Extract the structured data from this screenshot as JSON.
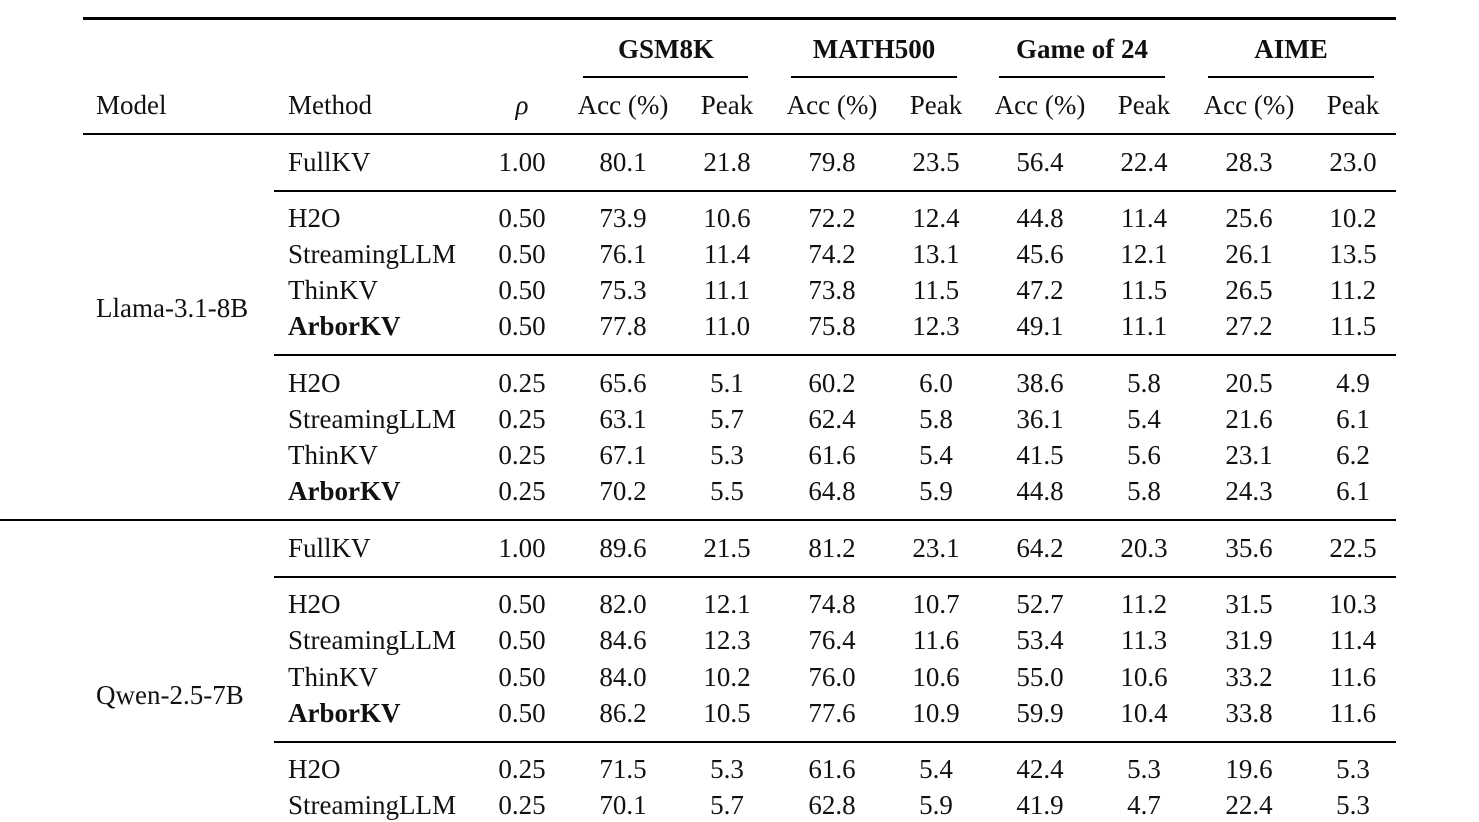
{
  "header": {
    "groups": [
      "GSM8K",
      "MATH500",
      "Game of 24",
      "AIME"
    ],
    "model_label": "Model",
    "method_label": "Method",
    "rho_label": "ρ",
    "acc_label": "Acc (%)",
    "peak_label": "Peak"
  },
  "rows": [
    {
      "model": "",
      "method": "FullKV",
      "bold": false,
      "rho": "1.00",
      "vals": [
        "80.1",
        "21.8",
        "79.8",
        "23.5",
        "56.4",
        "22.4",
        "28.3",
        "23.0"
      ]
    },
    {
      "model": "",
      "method": "H2O",
      "bold": false,
      "rho": "0.50",
      "vals": [
        "73.9",
        "10.6",
        "72.2",
        "12.4",
        "44.8",
        "11.4",
        "25.6",
        "10.2"
      ]
    },
    {
      "model": "",
      "method": "StreamingLLM",
      "bold": false,
      "rho": "0.50",
      "vals": [
        "76.1",
        "11.4",
        "74.2",
        "13.1",
        "45.6",
        "12.1",
        "26.1",
        "13.5"
      ]
    },
    {
      "model": "Llama-3.1-8B",
      "method": "ThinKV",
      "bold": false,
      "rho": "0.50",
      "vals": [
        "75.3",
        "11.1",
        "73.8",
        "11.5",
        "47.2",
        "11.5",
        "26.5",
        "11.2"
      ]
    },
    {
      "model": "",
      "method": "ArborKV",
      "bold": true,
      "rho": "0.50",
      "vals": [
        "77.8",
        "11.0",
        "75.8",
        "12.3",
        "49.1",
        "11.1",
        "27.2",
        "11.5"
      ]
    },
    {
      "model": "",
      "method": "H2O",
      "bold": false,
      "rho": "0.25",
      "vals": [
        "65.6",
        "5.1",
        "60.2",
        "6.0",
        "38.6",
        "5.8",
        "20.5",
        "4.9"
      ]
    },
    {
      "model": "",
      "method": "StreamingLLM",
      "bold": false,
      "rho": "0.25",
      "vals": [
        "63.1",
        "5.7",
        "62.4",
        "5.8",
        "36.1",
        "5.4",
        "21.6",
        "6.1"
      ]
    },
    {
      "model": "",
      "method": "ThinKV",
      "bold": false,
      "rho": "0.25",
      "vals": [
        "67.1",
        "5.3",
        "61.6",
        "5.4",
        "41.5",
        "5.6",
        "23.1",
        "6.2"
      ]
    },
    {
      "model": "",
      "method": "ArborKV",
      "bold": true,
      "rho": "0.25",
      "vals": [
        "70.2",
        "5.5",
        "64.8",
        "5.9",
        "44.8",
        "5.8",
        "24.3",
        "6.1"
      ]
    },
    {
      "model": "",
      "method": "FullKV",
      "bold": false,
      "rho": "1.00",
      "vals": [
        "89.6",
        "21.5",
        "81.2",
        "23.1",
        "64.2",
        "20.3",
        "35.6",
        "22.5"
      ]
    },
    {
      "model": "",
      "method": "H2O",
      "bold": false,
      "rho": "0.50",
      "vals": [
        "82.0",
        "12.1",
        "74.8",
        "10.7",
        "52.7",
        "11.2",
        "31.5",
        "10.3"
      ]
    },
    {
      "model": "",
      "method": "StreamingLLM",
      "bold": false,
      "rho": "0.50",
      "vals": [
        "84.6",
        "12.3",
        "76.4",
        "11.6",
        "53.4",
        "11.3",
        "31.9",
        "11.4"
      ]
    },
    {
      "model": "Qwen-2.5-7B",
      "method": "ThinKV",
      "bold": false,
      "rho": "0.50",
      "vals": [
        "84.0",
        "10.2",
        "76.0",
        "10.6",
        "55.0",
        "10.6",
        "33.2",
        "11.6"
      ]
    },
    {
      "model": "",
      "method": "ArborKV",
      "bold": true,
      "rho": "0.50",
      "vals": [
        "86.2",
        "10.5",
        "77.6",
        "10.9",
        "59.9",
        "10.4",
        "33.8",
        "11.6"
      ]
    },
    {
      "model": "",
      "method": "H2O",
      "bold": false,
      "rho": "0.25",
      "vals": [
        "71.5",
        "5.3",
        "61.6",
        "5.4",
        "42.4",
        "5.3",
        "19.6",
        "5.3"
      ]
    },
    {
      "model": "",
      "method": "StreamingLLM",
      "bold": false,
      "rho": "0.25",
      "vals": [
        "70.1",
        "5.7",
        "62.8",
        "5.9",
        "41.9",
        "4.7",
        "22.4",
        "5.3"
      ]
    }
  ]
}
